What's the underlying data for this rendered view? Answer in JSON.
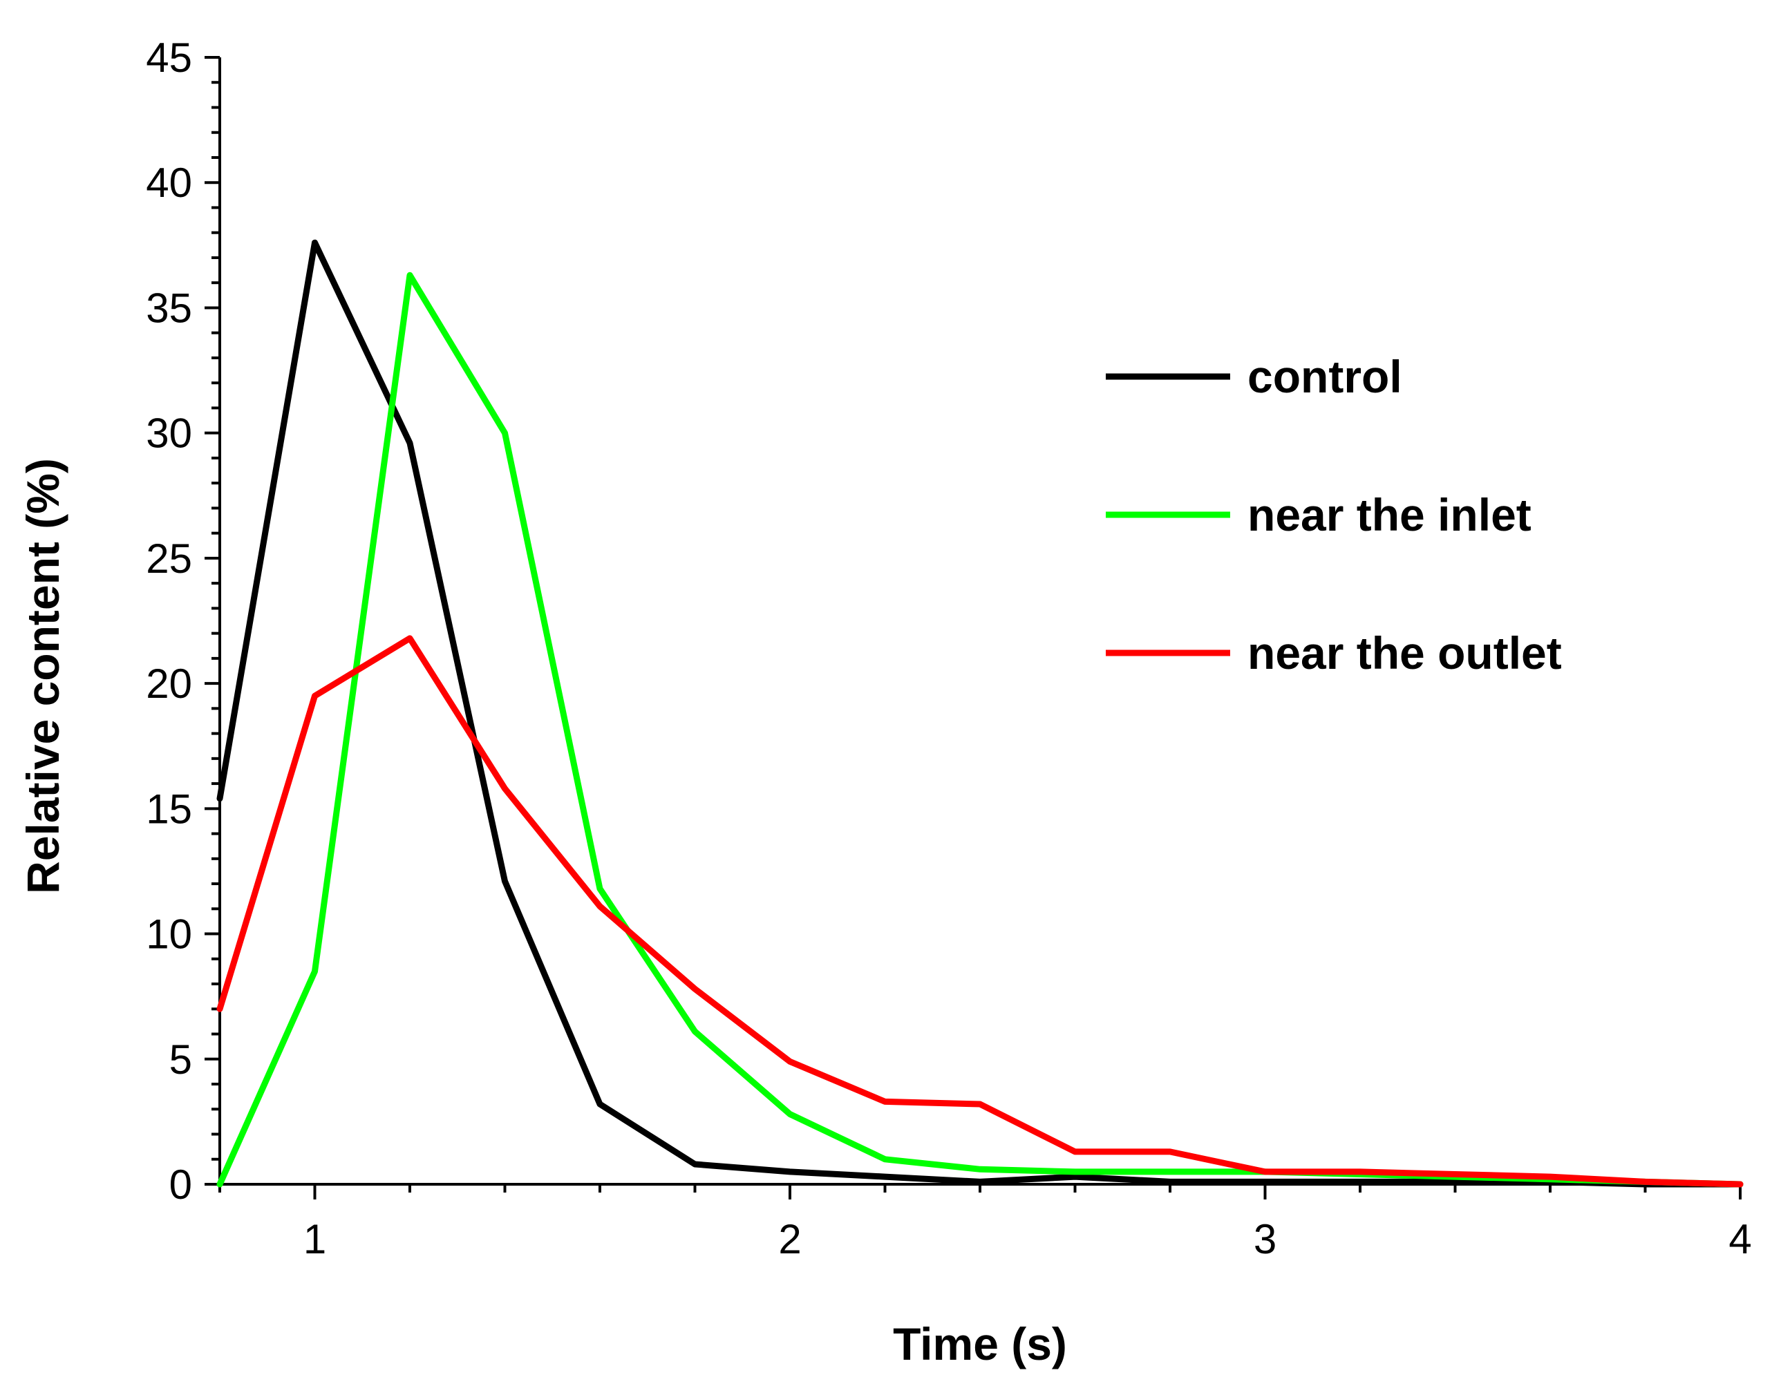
{
  "chart_data": {
    "type": "line",
    "title": "",
    "xlabel": "Time (s)",
    "ylabel": "Relative content (%)",
    "xlim": [
      0.8,
      4
    ],
    "ylim": [
      0,
      45
    ],
    "x_ticks": [
      1,
      2,
      3,
      4
    ],
    "x_minor_step": 0.2,
    "y_ticks": [
      0,
      5,
      10,
      15,
      20,
      25,
      30,
      35,
      40,
      45
    ],
    "y_minor_step": 1,
    "grid": false,
    "legend_position": "top-right",
    "series": [
      {
        "name": "control",
        "color": "#000000",
        "x": [
          0.8,
          1.0,
          1.2,
          1.4,
          1.6,
          1.8,
          2.0,
          2.2,
          2.4,
          2.6,
          2.8,
          3.0,
          3.2,
          3.4,
          3.6,
          3.8,
          4.0
        ],
        "values": [
          15.4,
          37.6,
          29.6,
          12.1,
          3.2,
          0.8,
          0.5,
          0.3,
          0.1,
          0.3,
          0.1,
          0.1,
          0.1,
          0.1,
          0.1,
          0.0,
          0.0
        ]
      },
      {
        "name": "near the inlet",
        "color": "#00ff00",
        "x": [
          0.8,
          1.0,
          1.2,
          1.4,
          1.6,
          1.8,
          2.0,
          2.2,
          2.4,
          2.6,
          2.8,
          3.0,
          3.2,
          3.4,
          3.6,
          3.8,
          4.0
        ],
        "values": [
          0.0,
          8.5,
          36.3,
          30.0,
          11.8,
          6.1,
          2.8,
          1.0,
          0.6,
          0.5,
          0.5,
          0.5,
          0.4,
          0.3,
          0.2,
          0.1,
          0.0
        ]
      },
      {
        "name": "near the outlet",
        "color": "#ff0000",
        "x": [
          0.8,
          1.0,
          1.2,
          1.4,
          1.6,
          1.8,
          2.0,
          2.2,
          2.4,
          2.6,
          2.8,
          3.0,
          3.2,
          3.4,
          3.6,
          3.8,
          4.0
        ],
        "values": [
          7.0,
          19.5,
          21.8,
          15.8,
          11.1,
          7.8,
          4.9,
          3.3,
          3.2,
          1.3,
          1.3,
          0.5,
          0.5,
          0.4,
          0.3,
          0.1,
          0.0
        ]
      }
    ]
  }
}
